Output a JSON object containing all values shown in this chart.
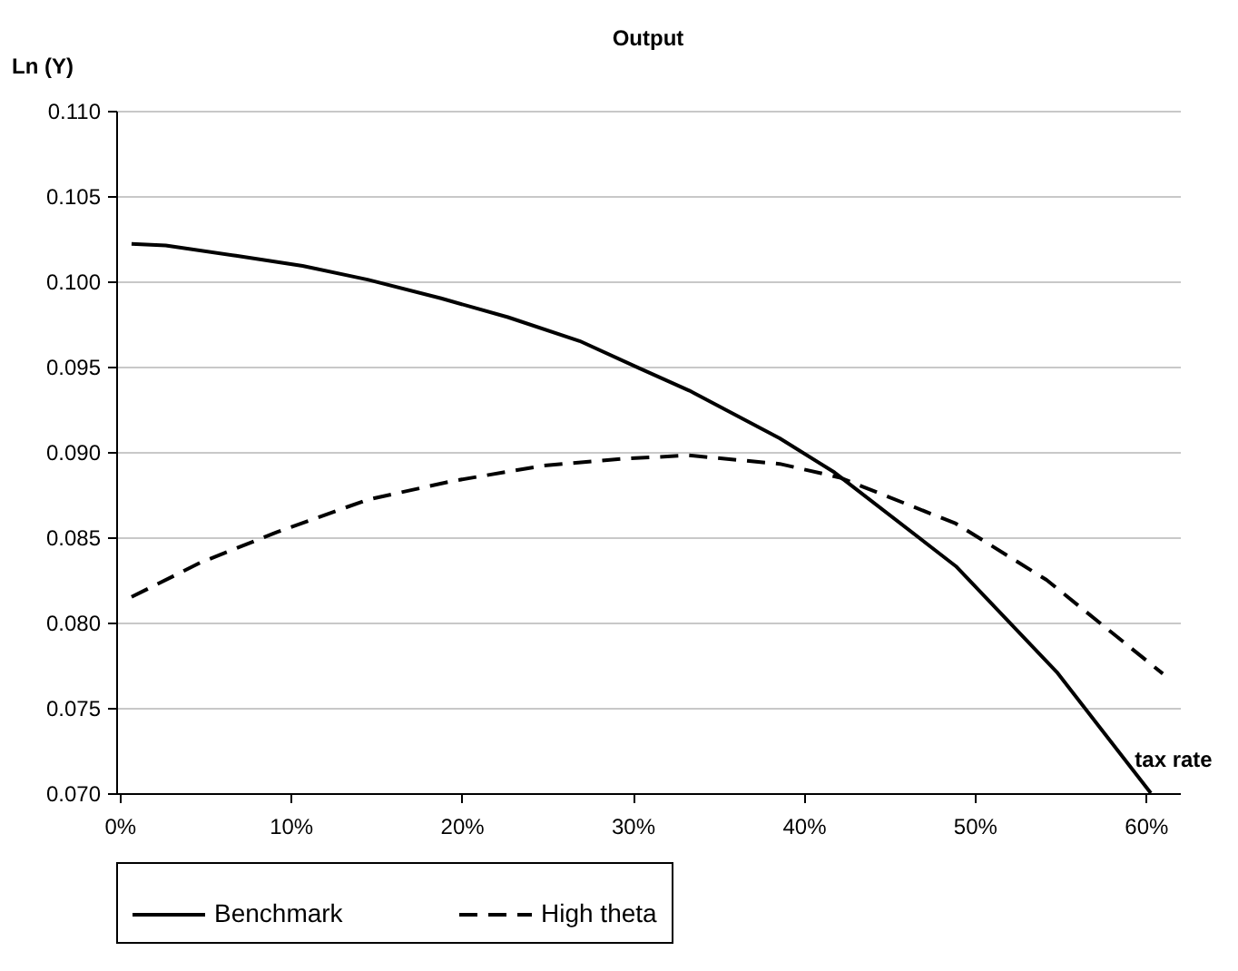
{
  "chart_data": {
    "type": "line",
    "title": "Output",
    "xlabel": "tax rate",
    "ylabel": "Ln (Y)",
    "xlim": [
      -0.2,
      62
    ],
    "ylim": [
      0.07,
      0.11
    ],
    "xticks": [
      {
        "value": 0,
        "label": "0%"
      },
      {
        "value": 10,
        "label": "10%"
      },
      {
        "value": 20,
        "label": "20%"
      },
      {
        "value": 30,
        "label": "30%"
      },
      {
        "value": 40,
        "label": "40%"
      },
      {
        "value": 50,
        "label": "50%"
      },
      {
        "value": 60,
        "label": "60%"
      }
    ],
    "yticks": [
      {
        "value": 0.07,
        "label": "0.070"
      },
      {
        "value": 0.075,
        "label": "0.075"
      },
      {
        "value": 0.08,
        "label": "0.080"
      },
      {
        "value": 0.085,
        "label": "0.085"
      },
      {
        "value": 0.09,
        "label": "0.090"
      },
      {
        "value": 0.095,
        "label": "0.095"
      },
      {
        "value": 0.1,
        "label": "0.100"
      },
      {
        "value": 0.105,
        "label": "0.105"
      },
      {
        "value": 0.11,
        "label": "0.110"
      }
    ],
    "grid": "y",
    "legend": "bottom",
    "series": [
      {
        "name": "Benchmark",
        "color": "#000000",
        "line_style": "solid",
        "x": [
          0.7,
          2.7,
          6.8,
          10.7,
          14.5,
          18.8,
          22.7,
          26.9,
          30.4,
          33.3,
          38.6,
          41.8,
          48.9,
          54.8,
          60.3
        ],
        "values": [
          0.1022,
          0.1021,
          0.1015,
          0.1009,
          0.1001,
          0.099,
          0.0979,
          0.0965,
          0.0949,
          0.0936,
          0.0908,
          0.0888,
          0.0833,
          0.0771,
          0.07
        ]
      },
      {
        "name": "High theta",
        "color": "#000000",
        "line_style": "dashed",
        "x": [
          0.7,
          4.7,
          9.2,
          14.5,
          19.5,
          24.8,
          29.4,
          33.3,
          38.6,
          42.1,
          48.9,
          54.2,
          61
        ],
        "values": [
          0.0815,
          0.0835,
          0.0853,
          0.0872,
          0.0883,
          0.0892,
          0.0896,
          0.0898,
          0.0893,
          0.0885,
          0.0858,
          0.0825,
          0.077
        ]
      }
    ]
  }
}
